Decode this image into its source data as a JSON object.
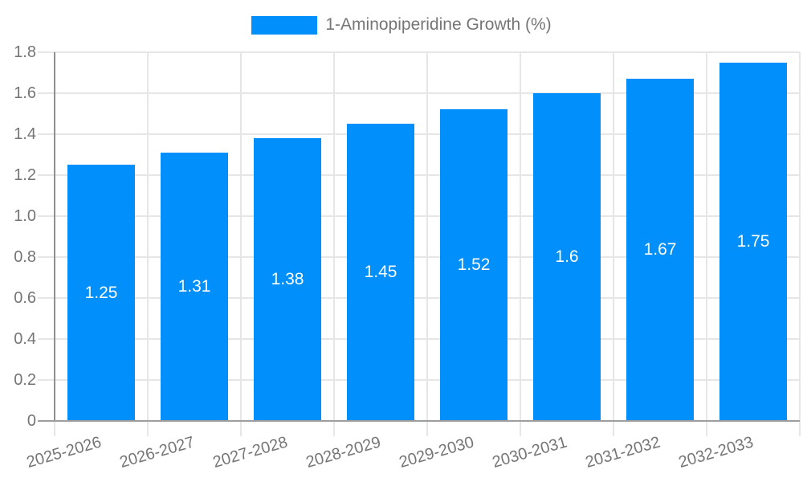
{
  "legend": {
    "label": "1-Aminopiperidine Growth (%)",
    "swatch_color": "#008FFB"
  },
  "chart_data": {
    "type": "bar",
    "title": "",
    "xlabel": "",
    "ylabel": "",
    "categories": [
      "2025-2026",
      "2026-2027",
      "2027-2028",
      "2028-2029",
      "2029-2030",
      "2030-2031",
      "2031-2032",
      "2032-2033"
    ],
    "values": [
      1.25,
      1.31,
      1.38,
      1.45,
      1.52,
      1.6,
      1.67,
      1.75
    ],
    "value_labels": [
      "1.25",
      "1.31",
      "1.38",
      "1.45",
      "1.52",
      "1.6",
      "1.67",
      "1.75"
    ],
    "ylim": [
      0,
      1.8
    ],
    "ytick_labels": [
      "0",
      "0.2",
      "0.4",
      "0.6",
      "0.8",
      "1.0",
      "1.2",
      "1.4",
      "1.6",
      "1.8"
    ],
    "grid": true,
    "legend_position": "top-center",
    "series_name": "1-Aminopiperidine Growth (%)"
  },
  "colors": {
    "bar": "#008FFB",
    "bar_value_text": "#ffffff",
    "axis_text": "#757575",
    "gridline": "#e6e6e6",
    "axis_line": "#8f8f8f"
  }
}
